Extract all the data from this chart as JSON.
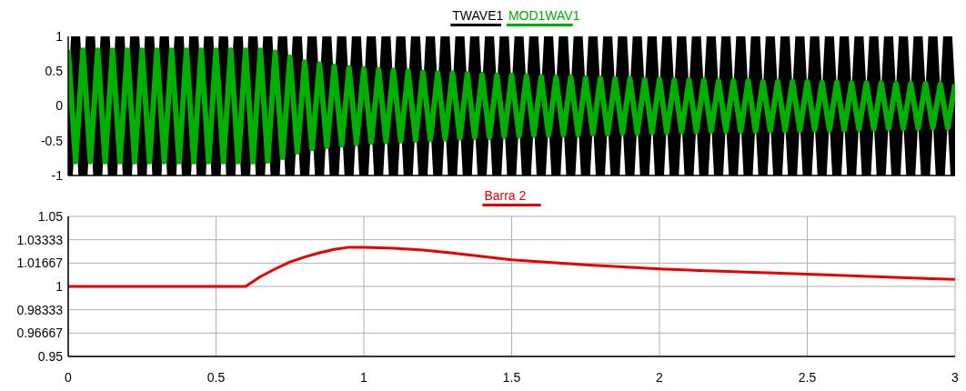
{
  "chart_data": [
    {
      "type": "line",
      "xlim": [
        0,
        3
      ],
      "ylim": [
        -1,
        1
      ],
      "yticks": [
        -1,
        -0.5,
        0,
        0.5,
        1
      ],
      "tick_labels": "y",
      "grid": false,
      "legend": "top",
      "line_style": "solid",
      "x": [
        0,
        0.025,
        0.05,
        0.075,
        0.1,
        0.125,
        0.15,
        0.175,
        0.2,
        0.225,
        0.25,
        0.275,
        0.3,
        0.325,
        0.35,
        0.375,
        0.4,
        0.425,
        0.45,
        0.475,
        0.5,
        0.525,
        0.55,
        0.575,
        0.6,
        0.625,
        0.65,
        0.675,
        0.7,
        0.725,
        0.75,
        0.775,
        0.8,
        0.825,
        0.85,
        0.875,
        0.9,
        0.925,
        0.95,
        0.975,
        1,
        1.025,
        1.05,
        1.075,
        1.1,
        1.125,
        1.15,
        1.175,
        1.2,
        1.225,
        1.25,
        1.275,
        1.3,
        1.325,
        1.35,
        1.375,
        1.4,
        1.425,
        1.45,
        1.475,
        1.5,
        1.525,
        1.55,
        1.575,
        1.6,
        1.625,
        1.65,
        1.675,
        1.7,
        1.725,
        1.75,
        1.775,
        1.8,
        1.825,
        1.85,
        1.875,
        1.9,
        1.925,
        1.95,
        1.975,
        2,
        2.025,
        2.05,
        2.075,
        2.1,
        2.125,
        2.15,
        2.175,
        2.2,
        2.225,
        2.25,
        2.275,
        2.3,
        2.325,
        2.35,
        2.375,
        2.4,
        2.425,
        2.45,
        2.475,
        2.5,
        2.525,
        2.55,
        2.575,
        2.6,
        2.625,
        2.65,
        2.675,
        2.7,
        2.725,
        2.75,
        2.775,
        2.8,
        2.825,
        2.85,
        2.875,
        2.9,
        2.925,
        2.95,
        2.975,
        3
      ],
      "series": [
        {
          "name": "TWAVE1",
          "color": "#000000",
          "values": [
            -1,
            1,
            -1,
            1,
            -1,
            1,
            -1,
            1,
            -1,
            1,
            -1,
            1,
            -1,
            1,
            -1,
            1,
            -1,
            1,
            -1,
            1,
            -1,
            1,
            -1,
            1,
            -1,
            1,
            -1,
            1,
            -1,
            1,
            -1,
            1,
            -1,
            1,
            -1,
            1,
            -1,
            1,
            -1,
            1,
            -1,
            1,
            -1,
            1,
            -1,
            1,
            -1,
            1,
            -1,
            1,
            -1,
            1,
            -1,
            1,
            -1,
            1,
            -1,
            1,
            -1,
            1,
            -1,
            1,
            -1,
            1,
            -1,
            1,
            -1,
            1,
            -1,
            1,
            -1,
            1,
            -1,
            1,
            -1,
            1,
            -1,
            1,
            -1,
            1,
            -1,
            1,
            -1,
            1,
            -1,
            1,
            -1,
            1,
            -1,
            1,
            -1,
            1,
            -1,
            1,
            -1,
            1,
            -1,
            1,
            -1,
            1,
            -1,
            1,
            -1,
            1,
            -1,
            1,
            -1,
            1,
            -1,
            1,
            -1,
            1,
            -1,
            1,
            -1,
            1,
            -1,
            1,
            -1,
            1,
            -1
          ]
        },
        {
          "name": "MOD1WAV1",
          "color": "#00b000",
          "values": [
            0.8,
            -0.8,
            0.8,
            -0.8,
            0.8,
            -0.8,
            0.8,
            -0.8,
            0.8,
            -0.8,
            0.8,
            -0.8,
            0.8,
            -0.8,
            0.8,
            -0.8,
            0.8,
            -0.8,
            0.8,
            -0.8,
            0.8,
            -0.8,
            0.8,
            -0.8,
            0.8,
            -0.8,
            0.8,
            -0.79,
            0.77,
            -0.74,
            0.7,
            -0.66,
            0.63,
            -0.61,
            0.6,
            -0.58,
            0.57,
            -0.56,
            0.55,
            -0.54,
            0.53,
            -0.52,
            0.52,
            -0.51,
            0.51,
            -0.5,
            0.5,
            -0.49,
            0.48,
            -0.48,
            0.47,
            -0.47,
            0.47,
            -0.46,
            0.46,
            -0.45,
            0.45,
            -0.45,
            0.44,
            -0.44,
            0.44,
            -0.43,
            0.43,
            -0.42,
            0.42,
            -0.42,
            0.41,
            -0.41,
            0.41,
            -0.41,
            0.4,
            -0.4,
            0.4,
            -0.4,
            0.39,
            -0.39,
            0.39,
            -0.39,
            0.38,
            -0.38,
            0.38,
            -0.38,
            0.37,
            -0.37,
            0.37,
            -0.37,
            0.37,
            -0.36,
            0.36,
            -0.36,
            0.36,
            -0.36,
            0.36,
            -0.36,
            0.35,
            -0.35,
            0.35,
            -0.35,
            0.35,
            -0.35,
            0.35,
            -0.34,
            0.34,
            -0.34,
            0.34,
            -0.34,
            0.33,
            -0.33,
            0.33,
            -0.33,
            0.33,
            -0.32,
            0.32,
            -0.32,
            0.32,
            -0.32,
            0.32,
            -0.31,
            0.31,
            -0.31,
            0.31
          ]
        }
      ]
    },
    {
      "type": "line",
      "xlim": [
        0,
        3
      ],
      "xticks": [
        0,
        0.5,
        1,
        1.5,
        2,
        2.5,
        3
      ],
      "ylim": [
        0.95,
        1.05
      ],
      "yticks": [
        0.95,
        0.96667,
        0.98333,
        1,
        1.01667,
        1.03333,
        1.05
      ],
      "grid": true,
      "legend": "top",
      "line_style": "solid",
      "x": [
        0,
        0.6,
        0.65,
        0.7,
        0.75,
        0.8,
        0.85,
        0.9,
        0.95,
        1,
        1.1,
        1.2,
        1.3,
        1.4,
        1.5,
        1.75,
        2,
        2.25,
        2.5,
        2.75,
        3
      ],
      "series": [
        {
          "name": "Barra 2",
          "color": "#ee0000",
          "values": [
            1,
            1,
            1.007,
            1.0125,
            1.0175,
            1.021,
            1.024,
            1.0265,
            1.028,
            1.028,
            1.0272,
            1.026,
            1.0238,
            1.0215,
            1.019,
            1.0155,
            1.0125,
            1.0105,
            1.0088,
            1.0068,
            1.005
          ]
        }
      ]
    }
  ]
}
